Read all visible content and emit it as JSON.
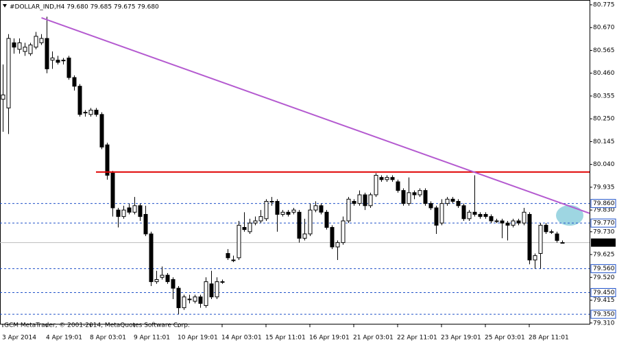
{
  "chart_data": {
    "type": "candlestick",
    "title": "#DOLLAR_IND,H4  79.680 79.685 79.675 79.680",
    "footer": "GCM MetaTrader, © 2001-2014, MetaQuotes Software Corp.",
    "ylim": [
      79.303,
      80.797
    ],
    "yticks": [
      80.775,
      {
        "value": 80.67,
        "label": "80.670"
      },
      80.565,
      {
        "value": 80.46,
        "label": "80.460"
      },
      80.355,
      {
        "value": 80.25,
        "label": "80.250"
      },
      80.145,
      {
        "value": 80.04,
        "label": "80.040"
      },
      79.935,
      {
        "value": 79.83,
        "label": "79.830"
      },
      {
        "value": 79.73,
        "label": "79.730"
      },
      79.625,
      {
        "value": 79.52,
        "label": "79.520"
      },
      79.415,
      {
        "value": 79.31,
        "label": "79.310"
      }
    ],
    "levels": [
      {
        "value": 79.86,
        "label": "79.860"
      },
      {
        "value": 79.77,
        "label": "79.770"
      },
      {
        "value": 79.56,
        "label": "79.560"
      },
      {
        "value": 79.45,
        "label": "79.450"
      },
      {
        "value": 79.35,
        "label": "79.350"
      }
    ],
    "level_color": "#1c4fc8",
    "bid": {
      "value": 79.68,
      "label": "79.680"
    },
    "horizontal_line": {
      "value": 80.005,
      "start_index": 17,
      "color": "#e00000"
    },
    "trend_line": {
      "start_index": 7,
      "start_value": 80.715,
      "end_value": 79.815,
      "color": "#b45ad0"
    },
    "categories": [
      "3 Apr 2014",
      null,
      null,
      null,
      null,
      null,
      null,
      null,
      "4 Apr 19:01",
      null,
      null,
      null,
      null,
      null,
      null,
      null,
      "8 Apr 03:01",
      null,
      null,
      null,
      null,
      null,
      null,
      null,
      "9 Apr 11:01",
      null,
      null,
      null,
      null,
      null,
      null,
      null,
      "10 Apr 19:01",
      null,
      null,
      null,
      null,
      null,
      null,
      null,
      "14 Apr 03:01",
      null,
      null,
      null,
      null,
      null,
      null,
      null,
      "15 Apr 11:01",
      null,
      null,
      null,
      null,
      null,
      null,
      null,
      "16 Apr 19:01",
      null,
      null,
      null,
      null,
      null,
      null,
      null,
      "21 Apr 03:01",
      null,
      null,
      null,
      null,
      null,
      null,
      null,
      "22 Apr 11:01",
      null,
      null,
      null,
      null,
      null,
      null,
      null,
      "23 Apr 19:01",
      null,
      null,
      null,
      null,
      null,
      null,
      null,
      "25 Apr 03:01",
      null,
      null,
      null,
      null,
      null,
      null,
      null,
      "28 Apr 11:01",
      null,
      null,
      null,
      null,
      null,
      null
    ],
    "open": [
      80.34,
      80.3,
      80.6,
      80.57,
      80.56,
      80.55,
      80.58,
      80.6,
      80.62,
      80.52,
      80.52,
      80.52,
      80.53,
      80.44,
      80.4,
      80.28,
      80.27,
      80.29,
      80.27,
      80.13,
      80.0,
      79.83,
      79.8,
      79.84,
      79.82,
      79.85,
      79.81,
      79.72,
      79.5,
      79.52,
      79.53,
      79.51,
      79.47,
      79.38,
      79.42,
      79.41,
      79.43,
      79.39,
      79.49,
      79.43,
      79.5,
      79.63,
      79.6,
      79.61,
      79.75,
      79.73,
      79.77,
      79.78,
      79.79,
      79.87,
      79.87,
      79.81,
      79.82,
      79.82,
      79.82,
      79.7,
      79.72,
      79.83,
      79.85,
      79.82,
      79.75,
      79.66,
      79.68,
      79.78,
      79.87,
      79.86,
      79.9,
      79.85,
      79.9,
      79.98,
      79.97,
      79.98,
      79.96,
      79.92,
      79.86,
      79.91,
      79.9,
      79.92,
      79.86,
      79.84,
      79.77,
      79.86,
      79.88,
      79.87,
      79.85,
      79.79,
      79.82,
      79.81,
      79.81,
      79.8,
      79.78,
      79.78,
      79.77,
      79.76,
      79.78,
      79.77,
      79.81,
      79.6,
      79.63,
      79.76,
      79.73,
      79.72,
      79.68
    ],
    "high": [
      80.5,
      80.64,
      80.62,
      80.62,
      80.6,
      80.6,
      80.65,
      80.64,
      80.72,
      80.56,
      80.54,
      80.53,
      80.54,
      80.45,
      80.41,
      80.29,
      80.3,
      80.3,
      80.28,
      80.14,
      80.01,
      79.84,
      79.85,
      79.86,
      79.89,
      79.86,
      79.85,
      79.73,
      79.55,
      79.57,
      79.54,
      79.52,
      79.48,
      79.44,
      79.44,
      79.44,
      79.44,
      79.52,
      79.55,
      79.52,
      79.51,
      79.65,
      79.62,
      79.78,
      79.82,
      79.79,
      79.8,
      79.83,
      79.88,
      79.89,
      79.88,
      79.83,
      79.83,
      79.84,
      79.83,
      79.79,
      79.86,
      79.87,
      79.86,
      79.83,
      79.76,
      79.69,
      79.8,
      79.89,
      79.88,
      79.92,
      79.91,
      79.91,
      80.0,
      79.99,
      79.99,
      79.99,
      79.97,
      79.93,
      79.98,
      79.92,
      79.93,
      79.93,
      79.87,
      79.85,
      79.88,
      79.89,
      79.89,
      79.88,
      79.86,
      79.83,
      79.99,
      79.82,
      79.82,
      79.81,
      79.79,
      79.79,
      79.78,
      79.79,
      79.79,
      79.84,
      79.82,
      79.63,
      79.77,
      79.77,
      79.74,
      79.73,
      79.69
    ],
    "low": [
      80.19,
      80.18,
      80.55,
      80.55,
      80.54,
      80.54,
      80.57,
      80.59,
      80.46,
      80.48,
      80.5,
      80.5,
      80.43,
      80.38,
      80.26,
      80.26,
      80.26,
      80.26,
      80.11,
      79.97,
      79.8,
      79.75,
      79.79,
      79.81,
      79.81,
      79.78,
      79.71,
      79.48,
      79.49,
      79.51,
      79.49,
      79.42,
      79.35,
      79.37,
      79.4,
      79.4,
      79.38,
      79.38,
      79.42,
      79.42,
      79.49,
      79.6,
      79.59,
      79.6,
      79.73,
      79.72,
      79.76,
      79.77,
      79.78,
      79.85,
      79.73,
      79.8,
      79.8,
      79.81,
      79.68,
      79.69,
      79.71,
      79.82,
      79.81,
      79.74,
      79.65,
      79.6,
      79.67,
      79.77,
      79.85,
      79.85,
      79.83,
      79.84,
      79.89,
      79.96,
      79.96,
      79.96,
      79.91,
      79.85,
      79.85,
      79.88,
      79.89,
      79.85,
      79.83,
      79.72,
      79.76,
      79.85,
      79.86,
      79.84,
      79.78,
      79.78,
      79.8,
      79.79,
      79.79,
      79.77,
      79.77,
      79.7,
      79.69,
      79.75,
      79.76,
      79.76,
      79.58,
      79.56,
      79.56,
      79.72,
      79.72,
      79.68,
      79.68
    ],
    "close": [
      80.36,
      80.62,
      80.58,
      80.6,
      80.58,
      80.59,
      80.63,
      80.62,
      80.48,
      80.53,
      80.51,
      80.52,
      80.44,
      80.4,
      80.27,
      80.28,
      80.29,
      80.27,
      80.12,
      79.99,
      79.84,
      79.8,
      79.83,
      79.82,
      79.85,
      79.8,
      79.72,
      79.5,
      79.51,
      79.53,
      79.5,
      79.47,
      79.38,
      79.43,
      79.42,
      79.43,
      79.4,
      79.5,
      79.43,
      79.5,
      79.5,
      79.61,
      79.6,
      79.76,
      79.74,
      79.77,
      79.78,
      79.8,
      79.87,
      79.87,
      79.81,
      79.82,
      79.81,
      79.83,
      79.7,
      79.72,
      79.83,
      79.85,
      79.82,
      79.75,
      79.66,
      79.68,
      79.78,
      79.88,
      79.86,
      79.9,
      79.85,
      79.9,
      79.99,
      79.97,
      79.98,
      79.97,
      79.92,
      79.86,
      79.91,
      79.9,
      79.92,
      79.86,
      79.84,
      79.76,
      79.86,
      79.88,
      79.87,
      79.85,
      79.79,
      79.82,
      79.81,
      79.8,
      79.8,
      79.78,
      79.78,
      79.77,
      79.76,
      79.78,
      79.77,
      79.82,
      79.6,
      79.62,
      79.76,
      79.73,
      79.73,
      79.69,
      79.68
    ]
  }
}
